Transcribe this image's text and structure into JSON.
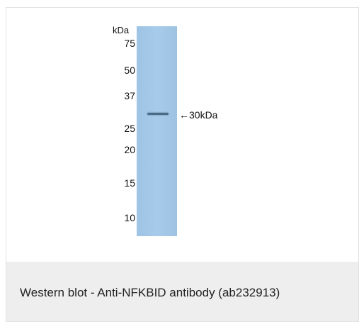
{
  "figure": {
    "blot": {
      "unit_label": "kDa",
      "markers": [
        "75",
        "50",
        "37",
        "25",
        "20",
        "15",
        "10"
      ],
      "band_label": "←30kDa",
      "lane_color": "#a6cbea",
      "band_color": "#4b6c89"
    }
  },
  "caption": {
    "text": "Western blot - Anti-NFKBID antibody (ab232913)"
  }
}
